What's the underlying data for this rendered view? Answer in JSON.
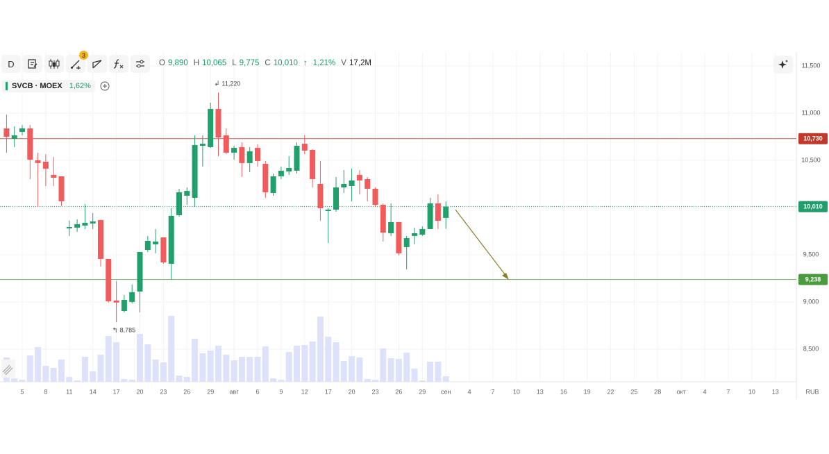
{
  "chart_data": {
    "type": "candlestick",
    "interval": "D",
    "alerts_badge": "3",
    "quote": [
      {
        "label": "O",
        "value": "9,890"
      },
      {
        "label": "H",
        "value": "10,065"
      },
      {
        "label": "L",
        "value": "9,775"
      },
      {
        "label": "C",
        "value": "10,010"
      }
    ],
    "change_arrow": "↑",
    "change": "1,21%",
    "volume_label": "V",
    "volume_value": "17,2M",
    "symbol": "SVCB · MOEX",
    "symbol_change": "1,62%",
    "currency": "RUB",
    "categories": [
      null,
      null,
      "5",
      null,
      null,
      "8",
      null,
      null,
      "11",
      null,
      null,
      "14",
      null,
      null,
      "17",
      null,
      null,
      "20",
      null,
      null,
      "23",
      null,
      null,
      "26",
      null,
      null,
      "29",
      null,
      null,
      "авг",
      null,
      null,
      "6",
      null,
      null,
      "9",
      null,
      null,
      "12",
      null,
      null,
      "17",
      null,
      null,
      "20",
      null,
      null,
      "23",
      null,
      null,
      "26",
      null,
      null,
      "29",
      null,
      null,
      "сен",
      null,
      null,
      "4",
      null,
      null,
      "7",
      null,
      null,
      "10",
      null,
      null,
      "13",
      null,
      null,
      "16",
      null,
      null,
      "19",
      null,
      null,
      "22",
      null,
      null,
      "25",
      null,
      null,
      "28",
      null,
      null,
      "окт",
      null,
      null,
      "4",
      null,
      null,
      "7",
      null,
      null,
      "10",
      null,
      null,
      "13",
      null
    ],
    "open": [
      10838,
      10728,
      10801,
      10838,
      10500,
      10485,
      10346,
      10331,
      9779,
      9787,
      9809,
      9831,
      9868,
      9456,
      9015,
      8904,
      9000,
      9110,
      9551,
      9610,
      9684,
      9404,
      9919,
      10125,
      10103,
      10654,
      10640,
      11044,
      10765,
      10581,
      10640,
      10471,
      10632,
      10463,
      10154,
      10331,
      10382,
      10390,
      10676,
      10610,
      10250,
      9963,
      9978,
      10213,
      10228,
      10346,
      10301,
      10199,
      10029,
      9728,
      9846,
      9581,
      9699,
      9713,
      9772,
      10044,
      9890,
      null,
      null,
      null,
      null,
      null,
      null,
      null,
      null,
      null,
      null,
      null,
      null,
      null,
      null,
      null,
      null,
      null,
      null,
      null,
      null,
      null,
      null,
      null,
      null,
      null,
      null,
      null,
      null,
      null,
      null,
      null,
      null,
      null,
      null,
      null,
      null,
      null,
      null,
      null,
      null,
      null,
      null,
      null
    ],
    "high": [
      10985,
      10860,
      10875,
      10875,
      10581,
      10566,
      10537,
      10331,
      9860,
      9875,
      10037,
      9941,
      9868,
      9456,
      9221,
      9074,
      9184,
      9529,
      9699,
      9772,
      9684,
      9993,
      10199,
      10213,
      10765,
      10765,
      11110,
      11220,
      10838,
      10654,
      10691,
      10640,
      10669,
      10493,
      10360,
      10434,
      10544,
      10691,
      10765,
      10620,
      10493,
      9993,
      10324,
      10397,
      10412,
      10397,
      10324,
      10213,
      10044,
      10044,
      9846,
      9699,
      9787,
      9801,
      10103,
      10140,
      10065,
      null,
      null,
      null,
      null,
      null,
      null,
      null,
      null,
      null,
      null,
      null,
      null,
      null,
      null,
      null,
      null,
      null,
      null,
      null,
      null,
      null,
      null,
      null,
      null,
      null,
      null,
      null,
      null,
      null,
      null,
      null,
      null,
      null,
      null,
      null,
      null,
      null,
      null,
      null,
      null,
      null,
      null,
      null
    ],
    "low": [
      10581,
      10640,
      10765,
      10300,
      10007,
      10228,
      10228,
      10015,
      9699,
      9743,
      9772,
      9772,
      9375,
      8993,
      8785,
      8890,
      8985,
      8890,
      9529,
      9515,
      9404,
      9238,
      9904,
      10029,
      10007,
      10434,
      10632,
      10544,
      10566,
      10507,
      10324,
      10375,
      10434,
      10103,
      10125,
      10301,
      10346,
      10360,
      10566,
      10213,
      9860,
      9625,
      9956,
      10154,
      10066,
      10140,
      10066,
      10007,
      9640,
      9699,
      9493,
      9346,
      9610,
      9699,
      9772,
      9772,
      9775,
      null,
      null,
      null,
      null,
      null,
      null,
      null,
      null,
      null,
      null,
      null,
      null,
      null,
      null,
      null,
      null,
      null,
      null,
      null,
      null,
      null,
      null,
      null,
      null,
      null,
      null,
      null,
      null,
      null,
      null,
      null,
      null,
      null,
      null,
      null,
      null,
      null,
      null,
      null,
      null,
      null,
      null,
      null
    ],
    "close": [
      10750,
      10765,
      10838,
      10507,
      10471,
      10412,
      10316,
      10066,
      9794,
      9824,
      9838,
      9853,
      9456,
      9007,
      8993,
      9022,
      9103,
      9529,
      9647,
      9640,
      9419,
      9912,
      10162,
      10176,
      10662,
      10676,
      11044,
      10743,
      10581,
      10632,
      10471,
      10596,
      10493,
      10162,
      10331,
      10390,
      10419,
      10654,
      10603,
      10301,
      9993,
      9978,
      10213,
      10250,
      10287,
      10287,
      10199,
      10029,
      9735,
      9846,
      9515,
      9676,
      9728,
      9772,
      10044,
      9860,
      10010,
      null,
      null,
      null,
      null,
      null,
      null,
      null,
      null,
      null,
      null,
      null,
      null,
      null,
      null,
      null,
      null,
      null,
      null,
      null,
      null,
      null,
      null,
      null,
      null,
      null,
      null,
      null,
      null,
      null,
      null,
      null,
      null,
      null,
      null,
      null,
      null,
      null,
      null,
      null,
      null,
      null,
      null,
      null
    ],
    "volume": [
      35,
      5,
      3,
      38,
      50,
      23,
      20,
      32,
      7,
      2,
      36,
      15,
      39,
      66,
      57,
      4,
      3,
      69,
      54,
      32,
      28,
      95,
      9,
      7,
      62,
      41,
      45,
      52,
      39,
      31,
      36,
      36,
      36,
      51,
      5,
      3,
      43,
      52,
      53,
      58,
      94,
      65,
      57,
      30,
      37,
      35,
      4,
      3,
      48,
      34,
      33,
      42,
      19,
      2,
      29,
      29,
      8,
      null,
      null,
      null,
      null,
      null,
      null,
      null,
      null,
      null,
      null,
      null,
      null,
      null,
      null,
      null,
      null,
      null,
      null,
      null,
      null,
      null,
      null,
      null,
      null,
      null,
      null,
      null,
      null,
      null,
      null,
      null,
      null,
      null,
      null,
      null,
      null,
      null,
      null,
      null,
      null,
      null,
      null,
      null
    ],
    "up_color": "#22a06b",
    "down_color": "#f25b5b",
    "volume_color": "#dde2fa",
    "ylim": [
      8154,
      11647
    ],
    "yticks": [
      {
        "value": 8500,
        "label": "8,500"
      },
      {
        "value": 9000,
        "label": "9,000"
      },
      {
        "value": 9500,
        "label": "9,500"
      },
      {
        "value": 10500,
        "label": "10,500"
      },
      {
        "value": 11000,
        "label": "11,000"
      },
      {
        "value": 11500,
        "label": "11,500"
      }
    ],
    "price_lines": [
      {
        "value": 10730,
        "label": "10,730",
        "color": "#c0392b",
        "style": "solid"
      },
      {
        "value": 10010,
        "label": "10,010",
        "color": "#1f9e6b",
        "style": "dotted"
      },
      {
        "value": 9238,
        "label": "9,238",
        "color": "#4a9a3e",
        "style": "solid"
      }
    ],
    "annotations": [
      {
        "value": 11220,
        "label": "11,220"
      },
      {
        "value": 8785,
        "label": "8,785"
      }
    ],
    "grid": true
  }
}
